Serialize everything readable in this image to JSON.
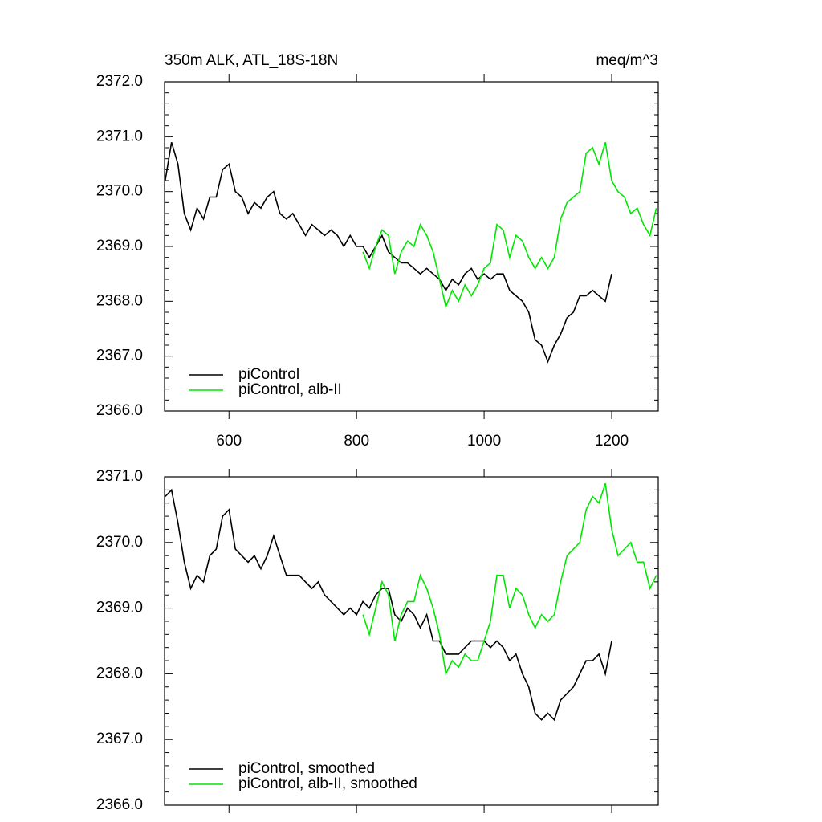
{
  "chart_data": [
    {
      "type": "line",
      "title": "350m ALK, ATL_18S-18N",
      "units": "meq/m^3",
      "xlim": [
        499,
        1273
      ],
      "xticks": [
        600,
        800,
        1000,
        1200
      ],
      "ylim": [
        2366,
        2372
      ],
      "yticks": [
        {
          "value": 2366,
          "label": "2366.0"
        },
        {
          "value": 2367,
          "label": "2367.0"
        },
        {
          "value": 2368,
          "label": "2368.0"
        },
        {
          "value": 2369,
          "label": "2369.0"
        },
        {
          "value": 2370,
          "label": "2370.0"
        },
        {
          "value": 2371,
          "label": "2371.0"
        },
        {
          "value": 2372,
          "label": "2372.0"
        }
      ],
      "legend": "lower left",
      "series": [
        {
          "name": "piControl",
          "color": "#000000",
          "x": [
            500,
            510,
            520,
            530,
            540,
            550,
            560,
            570,
            580,
            590,
            600,
            610,
            620,
            630,
            640,
            650,
            660,
            670,
            680,
            690,
            700,
            710,
            720,
            730,
            740,
            750,
            760,
            770,
            780,
            790,
            800,
            810,
            820,
            830,
            840,
            850,
            860,
            870,
            880,
            890,
            900,
            910,
            920,
            930,
            940,
            950,
            960,
            970,
            980,
            990,
            1000,
            1010,
            1020,
            1030,
            1040,
            1050,
            1060,
            1070,
            1080,
            1090,
            1100,
            1110,
            1120,
            1130,
            1140,
            1150,
            1160,
            1170,
            1180,
            1190,
            1200
          ],
          "values": [
            2370.2,
            2370.9,
            2370.5,
            2369.6,
            2369.3,
            2369.7,
            2369.5,
            2369.9,
            2369.9,
            2370.4,
            2370.5,
            2370.0,
            2369.9,
            2369.6,
            2369.8,
            2369.7,
            2369.9,
            2370.0,
            2369.6,
            2369.5,
            2369.6,
            2369.4,
            2369.2,
            2369.4,
            2369.3,
            2369.2,
            2369.3,
            2369.2,
            2369.0,
            2369.2,
            2369.0,
            2369.0,
            2368.8,
            2369.0,
            2369.2,
            2368.9,
            2368.8,
            2368.7,
            2368.7,
            2368.6,
            2368.5,
            2368.6,
            2368.5,
            2368.4,
            2368.2,
            2368.4,
            2368.3,
            2368.5,
            2368.6,
            2368.4,
            2368.5,
            2368.4,
            2368.5,
            2368.5,
            2368.2,
            2368.1,
            2368.0,
            2367.8,
            2367.3,
            2367.2,
            2366.9,
            2367.2,
            2367.4,
            2367.7,
            2367.8,
            2368.1,
            2368.1,
            2368.2,
            2368.1,
            2368.0,
            2368.5
          ]
        },
        {
          "name": "piControl, alb-II",
          "color": "#00e600",
          "x": [
            810,
            820,
            830,
            840,
            850,
            860,
            870,
            880,
            890,
            900,
            910,
            920,
            930,
            940,
            950,
            960,
            970,
            980,
            990,
            1000,
            1010,
            1020,
            1030,
            1040,
            1050,
            1060,
            1070,
            1080,
            1090,
            1100,
            1110,
            1120,
            1130,
            1140,
            1150,
            1160,
            1170,
            1180,
            1190,
            1200,
            1210,
            1220,
            1230,
            1240,
            1250,
            1260,
            1270
          ],
          "values": [
            2368.9,
            2368.6,
            2369.0,
            2369.3,
            2369.2,
            2368.5,
            2368.9,
            2369.1,
            2369.0,
            2369.4,
            2369.2,
            2368.9,
            2368.4,
            2367.9,
            2368.2,
            2368.0,
            2368.3,
            2368.1,
            2368.3,
            2368.6,
            2368.7,
            2369.4,
            2369.3,
            2368.8,
            2369.2,
            2369.1,
            2368.8,
            2368.6,
            2368.8,
            2368.6,
            2368.8,
            2369.5,
            2369.8,
            2369.9,
            2370.0,
            2370.7,
            2370.8,
            2370.5,
            2370.9,
            2370.2,
            2370.0,
            2369.9,
            2369.6,
            2369.7,
            2369.4,
            2369.2,
            2369.7
          ]
        }
      ]
    },
    {
      "type": "line",
      "xlim": [
        499,
        1273
      ],
      "ylim": [
        2366,
        2371
      ],
      "yticks": [
        {
          "value": 2366,
          "label": "2366.0"
        },
        {
          "value": 2367,
          "label": "2367.0"
        },
        {
          "value": 2368,
          "label": "2368.0"
        },
        {
          "value": 2369,
          "label": "2369.0"
        },
        {
          "value": 2370,
          "label": "2370.0"
        },
        {
          "value": 2371,
          "label": "2371.0"
        }
      ],
      "legend": "lower left",
      "series": [
        {
          "name": "piControl, smoothed",
          "color": "#000000",
          "x": [
            500,
            510,
            520,
            530,
            540,
            550,
            560,
            570,
            580,
            590,
            600,
            610,
            620,
            630,
            640,
            650,
            660,
            670,
            680,
            690,
            700,
            710,
            720,
            730,
            740,
            750,
            760,
            770,
            780,
            790,
            800,
            810,
            820,
            830,
            840,
            850,
            860,
            870,
            880,
            890,
            900,
            910,
            920,
            930,
            940,
            950,
            960,
            970,
            980,
            990,
            1000,
            1010,
            1020,
            1030,
            1040,
            1050,
            1060,
            1070,
            1080,
            1090,
            1100,
            1110,
            1120,
            1130,
            1140,
            1150,
            1160,
            1170,
            1180,
            1190,
            1200
          ],
          "values": [
            2370.7,
            2370.8,
            2370.3,
            2369.7,
            2369.3,
            2369.5,
            2369.4,
            2369.8,
            2369.9,
            2370.4,
            2370.5,
            2369.9,
            2369.8,
            2369.7,
            2369.8,
            2369.6,
            2369.8,
            2370.1,
            2369.8,
            2369.5,
            2369.5,
            2369.5,
            2369.4,
            2369.3,
            2369.4,
            2369.2,
            2369.1,
            2369.0,
            2368.9,
            2369.0,
            2368.9,
            2369.1,
            2369.0,
            2369.2,
            2369.3,
            2369.3,
            2368.9,
            2368.8,
            2369.0,
            2368.9,
            2368.7,
            2368.9,
            2368.5,
            2368.5,
            2368.3,
            2368.3,
            2368.3,
            2368.4,
            2368.5,
            2368.5,
            2368.5,
            2368.4,
            2368.5,
            2368.4,
            2368.2,
            2368.3,
            2368.0,
            2367.8,
            2367.4,
            2367.3,
            2367.4,
            2367.3,
            2367.6,
            2367.7,
            2367.8,
            2368.0,
            2368.2,
            2368.2,
            2368.3,
            2368.0,
            2368.5
          ]
        },
        {
          "name": "piControl, alb-II, smoothed",
          "color": "#00e600",
          "x": [
            810,
            820,
            830,
            840,
            850,
            860,
            870,
            880,
            890,
            900,
            910,
            920,
            930,
            940,
            950,
            960,
            970,
            980,
            990,
            1000,
            1010,
            1020,
            1030,
            1040,
            1050,
            1060,
            1070,
            1080,
            1090,
            1100,
            1110,
            1120,
            1130,
            1140,
            1150,
            1160,
            1170,
            1180,
            1190,
            1200,
            1210,
            1220,
            1230,
            1240,
            1250,
            1260,
            1270
          ],
          "values": [
            2368.9,
            2368.6,
            2369.0,
            2369.4,
            2369.2,
            2368.5,
            2368.9,
            2369.1,
            2369.1,
            2369.5,
            2369.3,
            2369.0,
            2368.6,
            2368.0,
            2368.2,
            2368.1,
            2368.3,
            2368.2,
            2368.2,
            2368.5,
            2368.8,
            2369.5,
            2369.5,
            2369.0,
            2369.3,
            2369.2,
            2368.9,
            2368.7,
            2368.9,
            2368.8,
            2368.9,
            2369.4,
            2369.8,
            2369.9,
            2370.0,
            2370.5,
            2370.7,
            2370.6,
            2370.9,
            2370.2,
            2369.8,
            2369.9,
            2370.0,
            2369.7,
            2369.7,
            2369.3,
            2369.5
          ]
        }
      ]
    }
  ]
}
